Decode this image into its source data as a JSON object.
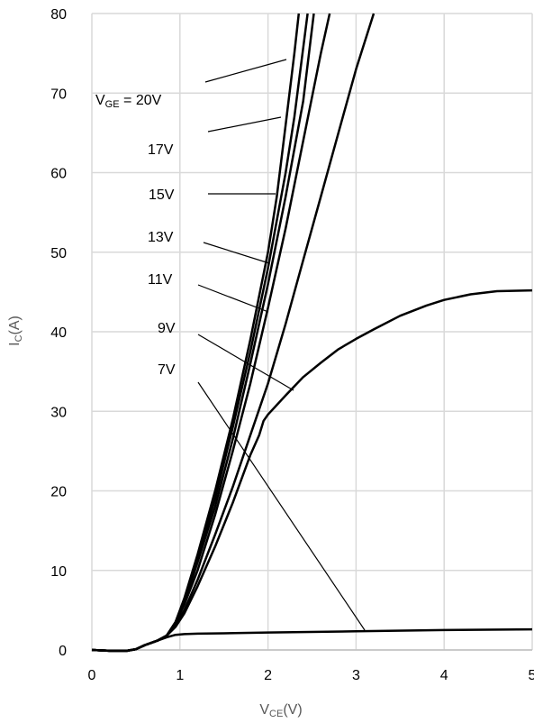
{
  "chart_data": {
    "type": "line",
    "title": "",
    "xlabel": {
      "main": "V",
      "sub": "CE",
      "suffix": "(V)"
    },
    "ylabel": {
      "main": "I",
      "sub": "C",
      "suffix": "(A)"
    },
    "xlim": [
      0,
      5
    ],
    "ylim": [
      0,
      80
    ],
    "xticks": [
      0,
      1,
      2,
      3,
      4,
      5
    ],
    "yticks": [
      0,
      10,
      20,
      30,
      40,
      50,
      60,
      70,
      80
    ],
    "grid": true,
    "series_label_prefix": {
      "main": "V",
      "sub": "GE",
      "suffix": " = 20V"
    },
    "series": [
      {
        "name": "20V",
        "points": [
          [
            0,
            0
          ],
          [
            0.2,
            -0.1
          ],
          [
            0.4,
            -0.1
          ],
          [
            0.5,
            0.1
          ],
          [
            0.6,
            0.6
          ],
          [
            0.75,
            1.2
          ],
          [
            0.85,
            1.8
          ],
          [
            0.95,
            3.5
          ],
          [
            1.05,
            6.5
          ],
          [
            1.2,
            12
          ],
          [
            1.4,
            20
          ],
          [
            1.6,
            29
          ],
          [
            1.8,
            39
          ],
          [
            2.0,
            50
          ],
          [
            2.1,
            57
          ],
          [
            2.2,
            66
          ],
          [
            2.3,
            75
          ],
          [
            2.35,
            80
          ]
        ]
      },
      {
        "name": "17V",
        "points": [
          [
            0,
            0
          ],
          [
            0.2,
            -0.1
          ],
          [
            0.4,
            -0.1
          ],
          [
            0.5,
            0.1
          ],
          [
            0.6,
            0.6
          ],
          [
            0.75,
            1.2
          ],
          [
            0.85,
            1.8
          ],
          [
            0.95,
            3.5
          ],
          [
            1.05,
            6.3
          ],
          [
            1.2,
            11.5
          ],
          [
            1.4,
            19
          ],
          [
            1.6,
            28
          ],
          [
            1.8,
            37.5
          ],
          [
            2.0,
            48
          ],
          [
            2.2,
            60
          ],
          [
            2.3,
            67
          ],
          [
            2.45,
            80
          ]
        ]
      },
      {
        "name": "15V",
        "points": [
          [
            0,
            0
          ],
          [
            0.2,
            -0.1
          ],
          [
            0.4,
            -0.1
          ],
          [
            0.5,
            0.1
          ],
          [
            0.6,
            0.6
          ],
          [
            0.75,
            1.2
          ],
          [
            0.85,
            1.8
          ],
          [
            0.95,
            3.4
          ],
          [
            1.05,
            6.0
          ],
          [
            1.2,
            11
          ],
          [
            1.4,
            18
          ],
          [
            1.6,
            26.5
          ],
          [
            1.8,
            36
          ],
          [
            2.0,
            46
          ],
          [
            2.2,
            57
          ],
          [
            2.4,
            69
          ],
          [
            2.52,
            80
          ]
        ]
      },
      {
        "name": "13V",
        "points": [
          [
            0,
            0
          ],
          [
            0.2,
            -0.1
          ],
          [
            0.4,
            -0.1
          ],
          [
            0.5,
            0.1
          ],
          [
            0.6,
            0.6
          ],
          [
            0.75,
            1.2
          ],
          [
            0.85,
            1.8
          ],
          [
            0.95,
            3.3
          ],
          [
            1.05,
            5.7
          ],
          [
            1.2,
            10
          ],
          [
            1.4,
            17
          ],
          [
            1.6,
            25
          ],
          [
            1.8,
            33.5
          ],
          [
            2.0,
            43
          ],
          [
            2.2,
            53
          ],
          [
            2.4,
            64
          ],
          [
            2.6,
            75
          ],
          [
            2.7,
            80
          ]
        ]
      },
      {
        "name": "11V",
        "points": [
          [
            0,
            0
          ],
          [
            0.2,
            -0.1
          ],
          [
            0.4,
            -0.1
          ],
          [
            0.5,
            0.1
          ],
          [
            0.6,
            0.6
          ],
          [
            0.75,
            1.2
          ],
          [
            0.85,
            1.8
          ],
          [
            0.95,
            3.0
          ],
          [
            1.05,
            5.0
          ],
          [
            1.2,
            8.8
          ],
          [
            1.4,
            14.5
          ],
          [
            1.6,
            20.5
          ],
          [
            1.8,
            27
          ],
          [
            2.0,
            33.5
          ],
          [
            2.2,
            41
          ],
          [
            2.4,
            49
          ],
          [
            2.6,
            57
          ],
          [
            2.8,
            65
          ],
          [
            3.0,
            73
          ],
          [
            3.2,
            80
          ]
        ]
      },
      {
        "name": "9V",
        "points": [
          [
            0,
            0
          ],
          [
            0.2,
            -0.1
          ],
          [
            0.4,
            -0.1
          ],
          [
            0.5,
            0.1
          ],
          [
            0.6,
            0.6
          ],
          [
            0.75,
            1.2
          ],
          [
            0.85,
            1.8
          ],
          [
            0.95,
            2.9
          ],
          [
            1.05,
            4.6
          ],
          [
            1.2,
            8
          ],
          [
            1.4,
            13
          ],
          [
            1.6,
            18.5
          ],
          [
            1.8,
            24.5
          ],
          [
            1.9,
            27
          ],
          [
            1.95,
            28.8
          ],
          [
            2.0,
            29.6
          ],
          [
            2.2,
            32
          ],
          [
            2.4,
            34.3
          ],
          [
            2.6,
            36.1
          ],
          [
            2.8,
            37.8
          ],
          [
            3.0,
            39.1
          ],
          [
            3.2,
            40.3
          ],
          [
            3.5,
            42
          ],
          [
            3.8,
            43.3
          ],
          [
            4.0,
            44
          ],
          [
            4.3,
            44.7
          ],
          [
            4.6,
            45.1
          ],
          [
            5.0,
            45.2
          ]
        ]
      },
      {
        "name": "7V",
        "points": [
          [
            0,
            0
          ],
          [
            0.2,
            -0.1
          ],
          [
            0.4,
            -0.1
          ],
          [
            0.5,
            0.1
          ],
          [
            0.6,
            0.6
          ],
          [
            0.75,
            1.2
          ],
          [
            0.85,
            1.6
          ],
          [
            0.95,
            1.9
          ],
          [
            1.05,
            2.0
          ],
          [
            1.2,
            2.05
          ],
          [
            1.5,
            2.1
          ],
          [
            2.0,
            2.2
          ],
          [
            3.0,
            2.35
          ],
          [
            4.0,
            2.5
          ],
          [
            5.0,
            2.6
          ]
        ]
      }
    ],
    "curve_labels": [
      {
        "text": "17V"
      },
      {
        "text": "15V"
      },
      {
        "text": "13V"
      },
      {
        "text": "11V"
      },
      {
        "text": "9V"
      },
      {
        "text": "7V"
      }
    ]
  }
}
